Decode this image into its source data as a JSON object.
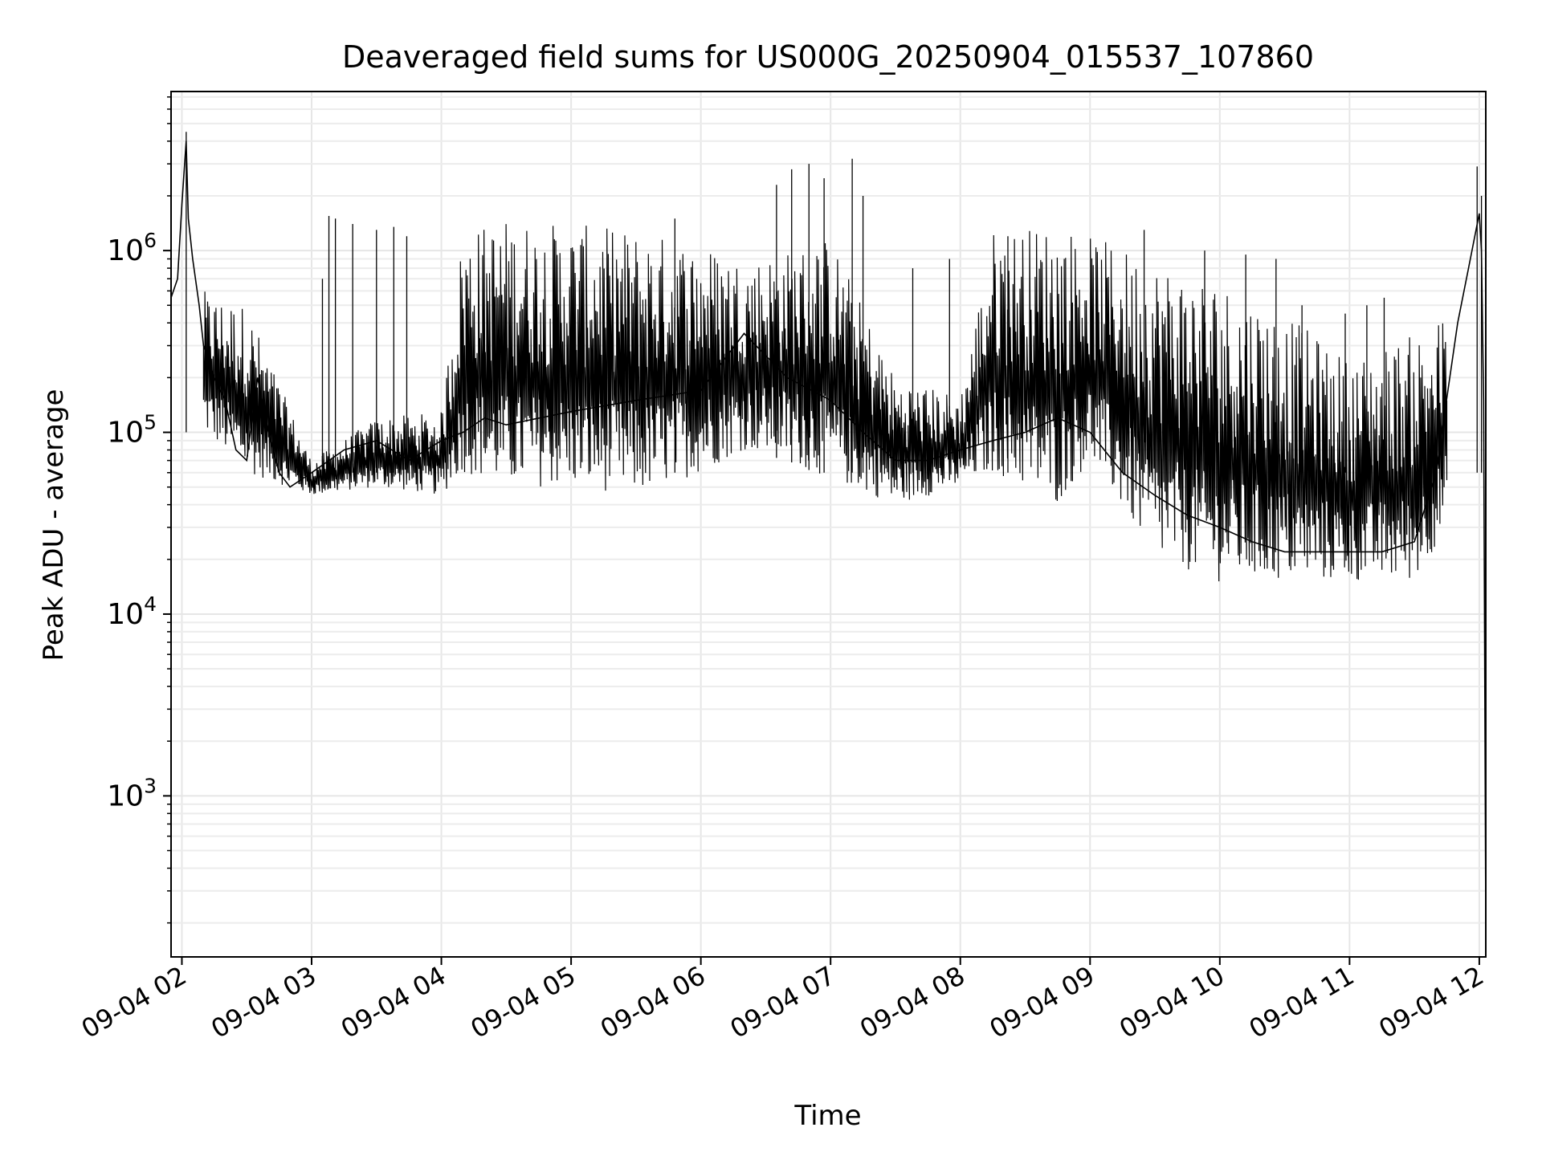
{
  "chart_data": {
    "type": "line",
    "title": "Deaveraged field sums for US000G_20250904_015537_107860",
    "xlabel": "Time",
    "ylabel": "Peak ADU - average",
    "y_scale": "log",
    "ylim": [
      130,
      7500000
    ],
    "xlim": [
      "2025-09-04 01:55",
      "2025-09-04 12:03"
    ],
    "grid": true,
    "line_color": "#000000",
    "x_ticks": [
      {
        "t": "2025-09-04 02:00",
        "label": "09-04 02"
      },
      {
        "t": "2025-09-04 03:00",
        "label": "09-04 03"
      },
      {
        "t": "2025-09-04 04:00",
        "label": "09-04 04"
      },
      {
        "t": "2025-09-04 05:00",
        "label": "09-04 05"
      },
      {
        "t": "2025-09-04 06:00",
        "label": "09-04 06"
      },
      {
        "t": "2025-09-04 07:00",
        "label": "09-04 07"
      },
      {
        "t": "2025-09-04 08:00",
        "label": "09-04 08"
      },
      {
        "t": "2025-09-04 09:00",
        "label": "09-04 09"
      },
      {
        "t": "2025-09-04 10:00",
        "label": "09-04 10"
      },
      {
        "t": "2025-09-04 11:00",
        "label": "09-04 11"
      },
      {
        "t": "2025-09-04 12:00",
        "label": "09-04 12"
      }
    ],
    "y_ticks": [
      {
        "value": 1000,
        "base": "10",
        "exp": "3"
      },
      {
        "value": 10000,
        "base": "10",
        "exp": "4"
      },
      {
        "value": 100000,
        "base": "10",
        "exp": "5"
      },
      {
        "value": 1000000,
        "base": "10",
        "exp": "6"
      }
    ],
    "series": [
      {
        "name": "",
        "x": [
          "2025-09-04 01:55",
          "2025-09-04 01:58",
          "2025-09-04 02:00",
          "2025-09-04 02:02",
          "2025-09-04 02:03",
          "2025-09-04 02:05",
          "2025-09-04 02:08",
          "2025-09-04 02:10",
          "2025-09-04 02:15",
          "2025-09-04 02:20",
          "2025-09-04 02:25",
          "2025-09-04 02:30",
          "2025-09-04 02:35",
          "2025-09-04 02:40",
          "2025-09-04 02:45",
          "2025-09-04 02:50",
          "2025-09-04 03:00",
          "2025-09-04 03:15",
          "2025-09-04 03:30",
          "2025-09-04 03:45",
          "2025-09-04 04:00",
          "2025-09-04 04:10",
          "2025-09-04 04:20",
          "2025-09-04 04:30",
          "2025-09-04 05:00",
          "2025-09-04 05:30",
          "2025-09-04 06:00",
          "2025-09-04 06:20",
          "2025-09-04 06:40",
          "2025-09-04 07:00",
          "2025-09-04 07:15",
          "2025-09-04 07:30",
          "2025-09-04 07:45",
          "2025-09-04 08:00",
          "2025-09-04 08:15",
          "2025-09-04 08:30",
          "2025-09-04 08:45",
          "2025-09-04 09:00",
          "2025-09-04 09:15",
          "2025-09-04 09:30",
          "2025-09-04 09:45",
          "2025-09-04 10:00",
          "2025-09-04 10:15",
          "2025-09-04 10:30",
          "2025-09-04 10:45",
          "2025-09-04 11:00",
          "2025-09-04 11:15",
          "2025-09-04 11:30",
          "2025-09-04 11:40",
          "2025-09-04 11:50",
          "2025-09-04 11:55",
          "2025-09-04 12:00",
          "2025-09-04 12:01",
          "2025-09-04 12:02",
          "2025-09-04 12:03"
        ],
        "y": [
          550000,
          700000,
          1800000,
          4000000,
          1500000,
          900000,
          500000,
          300000,
          200000,
          150000,
          80000,
          70000,
          200000,
          100000,
          60000,
          50000,
          60000,
          80000,
          90000,
          70000,
          90000,
          100000,
          120000,
          110000,
          130000,
          150000,
          170000,
          350000,
          200000,
          150000,
          100000,
          70000,
          70000,
          80000,
          90000,
          100000,
          120000,
          100000,
          60000,
          45000,
          35000,
          30000,
          25000,
          22000,
          22000,
          22000,
          22000,
          25000,
          60000,
          400000,
          800000,
          1600000,
          1000000,
          150000,
          200
        ]
      }
    ],
    "envelope": {
      "description_free": true,
      "x": [
        "2025-09-04 02:10",
        "2025-09-04 02:30",
        "2025-09-04 03:00",
        "2025-09-04 03:30",
        "2025-09-04 04:00",
        "2025-09-04 04:10",
        "2025-09-04 04:30",
        "2025-09-04 05:00",
        "2025-09-04 05:30",
        "2025-09-04 06:00",
        "2025-09-04 06:20",
        "2025-09-04 06:40",
        "2025-09-04 07:00",
        "2025-09-04 07:30",
        "2025-09-04 08:00",
        "2025-09-04 08:15",
        "2025-09-04 08:45",
        "2025-09-04 09:00",
        "2025-09-04 09:30",
        "2025-09-04 10:00",
        "2025-09-04 10:30",
        "2025-09-04 11:00",
        "2025-09-04 11:30",
        "2025-09-04 11:45"
      ],
      "low": [
        100000,
        60000,
        45000,
        50000,
        45000,
        60000,
        50000,
        50000,
        45000,
        60000,
        80000,
        70000,
        55000,
        40000,
        50000,
        60000,
        40000,
        70000,
        20000,
        15000,
        15000,
        15000,
        15000,
        30000
      ],
      "high": [
        600000,
        500000,
        70000,
        120000,
        130000,
        1300000,
        1500000,
        1400000,
        1300000,
        1100000,
        900000,
        1000000,
        1200000,
        200000,
        160000,
        1300000,
        1400000,
        1200000,
        900000,
        700000,
        450000,
        250000,
        350000,
        450000
      ]
    },
    "spikes": [
      {
        "t": "2025-09-04 02:02",
        "value": 4500000
      },
      {
        "t": "2025-09-04 03:05",
        "value": 700000
      },
      {
        "t": "2025-09-04 03:08",
        "value": 1550000
      },
      {
        "t": "2025-09-04 03:11",
        "value": 1500000
      },
      {
        "t": "2025-09-04 03:19",
        "value": 1400000
      },
      {
        "t": "2025-09-04 03:30",
        "value": 1300000
      },
      {
        "t": "2025-09-04 03:38",
        "value": 1350000
      },
      {
        "t": "2025-09-04 03:44",
        "value": 1200000
      },
      {
        "t": "2025-09-04 05:48",
        "value": 1500000
      },
      {
        "t": "2025-09-04 06:35",
        "value": 2300000
      },
      {
        "t": "2025-09-04 06:42",
        "value": 2800000
      },
      {
        "t": "2025-09-04 06:50",
        "value": 3000000
      },
      {
        "t": "2025-09-04 06:57",
        "value": 2500000
      },
      {
        "t": "2025-09-04 07:10",
        "value": 3200000
      },
      {
        "t": "2025-09-04 07:15",
        "value": 2000000
      },
      {
        "t": "2025-09-04 07:38",
        "value": 800000
      },
      {
        "t": "2025-09-04 07:55",
        "value": 900000
      },
      {
        "t": "2025-09-04 08:22",
        "value": 1200000
      },
      {
        "t": "2025-09-04 09:25",
        "value": 1300000
      },
      {
        "t": "2025-09-04 09:53",
        "value": 1000000
      },
      {
        "t": "2025-09-04 10:12",
        "value": 950000
      },
      {
        "t": "2025-09-04 10:26",
        "value": 900000
      },
      {
        "t": "2025-09-04 10:38",
        "value": 500000
      },
      {
        "t": "2025-09-04 10:58",
        "value": 450000
      },
      {
        "t": "2025-09-04 11:08",
        "value": 500000
      },
      {
        "t": "2025-09-04 11:16",
        "value": 550000
      },
      {
        "t": "2025-09-04 11:59",
        "value": 2900000
      },
      {
        "t": "2025-09-04 12:01",
        "value": 2000000
      }
    ]
  }
}
